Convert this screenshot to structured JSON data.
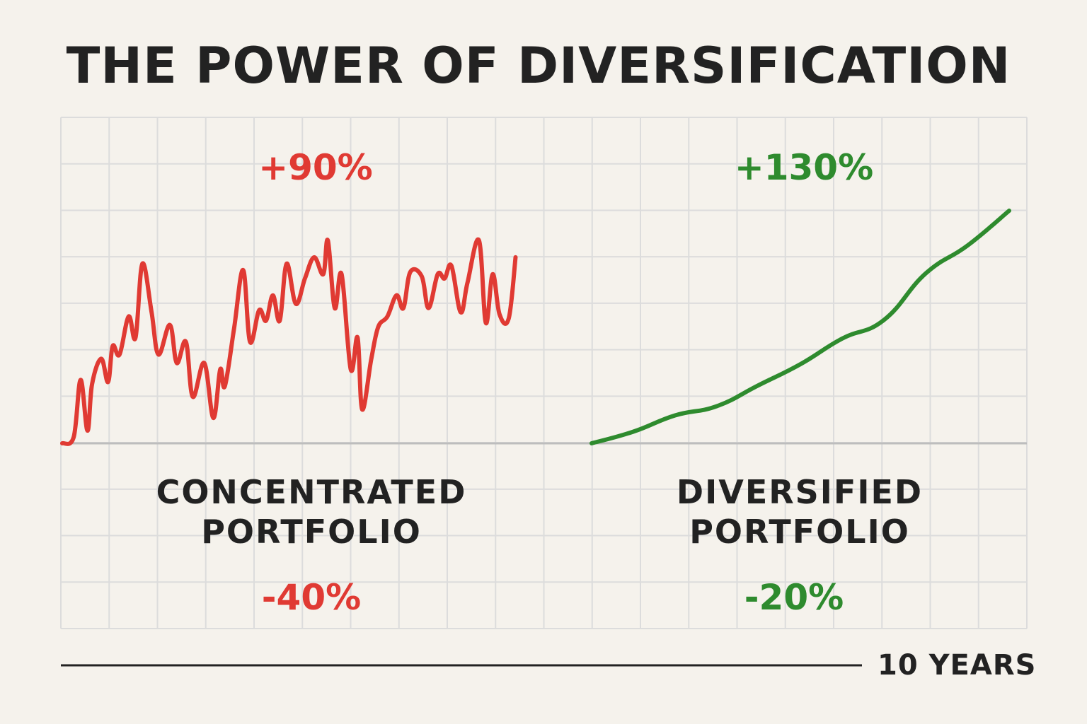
{
  "title": "THE POWER OF DIVERSIFICATION",
  "timeline_label": "10 YEARS",
  "colors": {
    "concentrated": "#e03a33",
    "diversified": "#2e8b2e",
    "grid": "#dcdcdc",
    "baseline": "#bdbdbd",
    "text": "#222222"
  },
  "chart_data": [
    {
      "type": "line",
      "name": "Concentrated Portfolio",
      "label_line1": "CONCENTRATED",
      "label_line2": "PORTFOLIO",
      "gain_label": "+90%",
      "drawdown_label": "-40%",
      "xlabel": "10 YEARS",
      "xlim": [
        0,
        10
      ],
      "ylim": [
        0,
        110
      ],
      "grid": true,
      "x": [
        0,
        0.25,
        0.4,
        0.55,
        0.65,
        0.85,
        1.0,
        1.1,
        1.25,
        1.45,
        1.6,
        1.75,
        1.95,
        2.1,
        2.35,
        2.5,
        2.7,
        2.85,
        3.1,
        3.3,
        3.45,
        3.55,
        3.75,
        3.95,
        4.1,
        4.3,
        4.45,
        4.6,
        4.75,
        4.9,
        5.1,
        5.3,
        5.5,
        5.7,
        5.8,
        5.95,
        6.1,
        6.3,
        6.45,
        6.55,
        6.75,
        6.9,
        7.1,
        7.3,
        7.45,
        7.6,
        7.85,
        8.0,
        8.2,
        8.35,
        8.5,
        8.7,
        8.85,
        9.1,
        9.25,
        9.4,
        9.55,
        9.75,
        9.9
      ],
      "y": [
        0,
        3,
        30,
        6,
        28,
        40,
        29,
        46,
        42,
        60,
        50,
        85,
        62,
        42,
        56,
        38,
        48,
        22,
        38,
        12,
        35,
        27,
        54,
        82,
        48,
        63,
        58,
        70,
        58,
        85,
        66,
        78,
        88,
        80,
        96,
        64,
        80,
        35,
        50,
        16,
        40,
        55,
        60,
        70,
        64,
        81,
        79,
        64,
        80,
        78,
        84,
        62,
        76,
        96,
        57,
        80,
        61,
        59,
        88
      ]
    },
    {
      "type": "line",
      "name": "Diversified Portfolio",
      "label_line1": "DIVERSIFIED",
      "label_line2": "PORTFOLIO",
      "gain_label": "+130%",
      "drawdown_label": "-20%",
      "xlabel": "10 YEARS",
      "xlim": [
        0,
        10
      ],
      "ylim": [
        0,
        110
      ],
      "grid": true,
      "x": [
        0,
        1.0,
        2.0,
        3.0,
        4.0,
        5.0,
        6.0,
        7.0,
        8.0,
        9.0,
        10.0
      ],
      "y": [
        0,
        5,
        12,
        16,
        25,
        34,
        45,
        53,
        73,
        85,
        100
      ]
    }
  ]
}
